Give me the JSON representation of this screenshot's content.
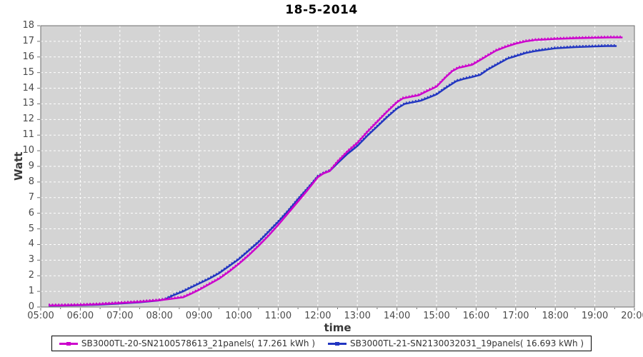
{
  "header": {
    "title": "18-5-2014"
  },
  "axes": {
    "y_label": "Watt",
    "x_label": "time",
    "y_ticks": [
      "0",
      "1",
      "2",
      "3",
      "4",
      "5",
      "6",
      "7",
      "8",
      "9",
      "10",
      "11",
      "12",
      "13",
      "14",
      "15",
      "16",
      "17",
      "18"
    ],
    "x_ticks": [
      "05:00",
      "06:00",
      "07:00",
      "08:00",
      "09:00",
      "10:00",
      "11:00",
      "12:00",
      "13:00",
      "14:00",
      "15:00",
      "16:00",
      "17:00",
      "18:00",
      "19:00",
      "20:00"
    ]
  },
  "colors": {
    "plot_background": "#d4d4d4",
    "gridline": "#ffffff",
    "plot_border": "#6e6e6e",
    "series_magenta": "#cc00cc",
    "series_blue": "#2135c1",
    "tick_text": "#4a4a4a",
    "title_text": "#000000"
  },
  "legend": {
    "items": [
      {
        "label": "SB3000TL-20-SN2100578613_21panels( 17.261 kWh )",
        "color": "#cc00cc"
      },
      {
        "label": "SB3000TL-21-SN2130032031_19panels( 16.693 kWh )",
        "color": "#2135c1"
      }
    ]
  },
  "chart_data": {
    "type": "line",
    "title": "18-5-2014",
    "xlabel": "time",
    "ylabel": "Watt",
    "xlim": [
      5,
      20
    ],
    "ylim": [
      0,
      18
    ],
    "x_unit": "hour of day (decimal)",
    "grid": true,
    "legend_position": "bottom",
    "series": [
      {
        "name": "SB3000TL-20-SN2100578613_21panels( 17.261 kWh )",
        "color": "#cc00cc",
        "total_kwh": 17.261,
        "points": [
          [
            5.2,
            0.1
          ],
          [
            5.5,
            0.1
          ],
          [
            6.0,
            0.13
          ],
          [
            6.5,
            0.18
          ],
          [
            7.0,
            0.25
          ],
          [
            7.5,
            0.33
          ],
          [
            8.0,
            0.43
          ],
          [
            8.3,
            0.52
          ],
          [
            8.6,
            0.62
          ],
          [
            8.8,
            0.85
          ],
          [
            9.0,
            1.1
          ],
          [
            9.25,
            1.45
          ],
          [
            9.5,
            1.8
          ],
          [
            9.75,
            2.25
          ],
          [
            10.0,
            2.75
          ],
          [
            10.25,
            3.3
          ],
          [
            10.5,
            3.9
          ],
          [
            10.75,
            4.55
          ],
          [
            11.0,
            5.25
          ],
          [
            11.25,
            6.0
          ],
          [
            11.5,
            6.75
          ],
          [
            11.75,
            7.5
          ],
          [
            12.0,
            8.3
          ],
          [
            12.15,
            8.55
          ],
          [
            12.3,
            8.7
          ],
          [
            12.5,
            9.3
          ],
          [
            12.75,
            9.95
          ],
          [
            13.0,
            10.5
          ],
          [
            13.25,
            11.2
          ],
          [
            13.5,
            11.85
          ],
          [
            13.75,
            12.5
          ],
          [
            14.0,
            13.1
          ],
          [
            14.15,
            13.35
          ],
          [
            14.35,
            13.45
          ],
          [
            14.55,
            13.55
          ],
          [
            14.75,
            13.8
          ],
          [
            15.0,
            14.1
          ],
          [
            15.25,
            14.75
          ],
          [
            15.4,
            15.1
          ],
          [
            15.55,
            15.3
          ],
          [
            15.7,
            15.38
          ],
          [
            15.9,
            15.5
          ],
          [
            16.1,
            15.8
          ],
          [
            16.3,
            16.1
          ],
          [
            16.5,
            16.4
          ],
          [
            16.75,
            16.65
          ],
          [
            17.0,
            16.85
          ],
          [
            17.25,
            17.0
          ],
          [
            17.5,
            17.08
          ],
          [
            18.0,
            17.15
          ],
          [
            18.5,
            17.2
          ],
          [
            19.0,
            17.23
          ],
          [
            19.4,
            17.25
          ],
          [
            19.7,
            17.25
          ]
        ]
      },
      {
        "name": "SB3000TL-21-SN2130032031_19panels( 16.693 kWh )",
        "color": "#2135c1",
        "total_kwh": 16.693,
        "points": [
          [
            5.2,
            0.08
          ],
          [
            5.5,
            0.09
          ],
          [
            6.0,
            0.11
          ],
          [
            6.5,
            0.15
          ],
          [
            7.0,
            0.22
          ],
          [
            7.5,
            0.3
          ],
          [
            8.0,
            0.42
          ],
          [
            8.15,
            0.5
          ],
          [
            8.35,
            0.75
          ],
          [
            8.6,
            1.0
          ],
          [
            8.8,
            1.25
          ],
          [
            9.0,
            1.5
          ],
          [
            9.25,
            1.8
          ],
          [
            9.5,
            2.15
          ],
          [
            9.75,
            2.6
          ],
          [
            10.0,
            3.05
          ],
          [
            10.25,
            3.6
          ],
          [
            10.5,
            4.15
          ],
          [
            10.75,
            4.8
          ],
          [
            11.0,
            5.45
          ],
          [
            11.25,
            6.15
          ],
          [
            11.5,
            6.9
          ],
          [
            11.75,
            7.6
          ],
          [
            12.0,
            8.35
          ],
          [
            12.15,
            8.55
          ],
          [
            12.3,
            8.7
          ],
          [
            12.5,
            9.2
          ],
          [
            12.75,
            9.8
          ],
          [
            13.0,
            10.3
          ],
          [
            13.25,
            10.95
          ],
          [
            13.5,
            11.55
          ],
          [
            13.75,
            12.15
          ],
          [
            14.0,
            12.7
          ],
          [
            14.2,
            13.0
          ],
          [
            14.4,
            13.1
          ],
          [
            14.6,
            13.2
          ],
          [
            14.8,
            13.4
          ],
          [
            15.0,
            13.6
          ],
          [
            15.25,
            14.05
          ],
          [
            15.5,
            14.45
          ],
          [
            15.7,
            14.6
          ],
          [
            15.9,
            14.72
          ],
          [
            16.1,
            14.85
          ],
          [
            16.3,
            15.2
          ],
          [
            16.55,
            15.55
          ],
          [
            16.8,
            15.9
          ],
          [
            17.0,
            16.05
          ],
          [
            17.25,
            16.25
          ],
          [
            17.5,
            16.38
          ],
          [
            18.0,
            16.55
          ],
          [
            18.5,
            16.63
          ],
          [
            19.0,
            16.67
          ],
          [
            19.3,
            16.7
          ],
          [
            19.55,
            16.7
          ]
        ]
      }
    ]
  }
}
